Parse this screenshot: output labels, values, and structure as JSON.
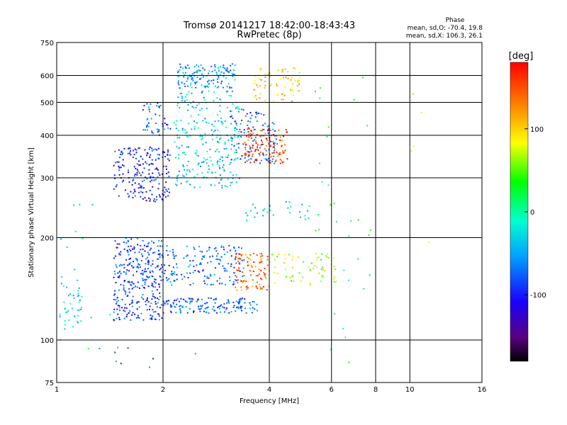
{
  "header": {
    "title_line1": "Tromsø 20141217 18:42:00-18:43:43",
    "title_line2": "RwPretec (8p)",
    "phase_title": "Phase",
    "phase_o": "mean, sd,O: -70.4, 19.8",
    "phase_x": "mean, sd,X: 106.3, 26.1"
  },
  "chart_data": {
    "type": "scatter",
    "xlabel": "Frequency [MHz]",
    "ylabel": "Stationary phase Virtual Height [km]",
    "x_scale": "log",
    "y_scale": "log",
    "xlim": [
      1,
      16
    ],
    "ylim": [
      75,
      750
    ],
    "x_ticks": [
      1,
      2,
      4,
      6,
      8,
      10,
      16
    ],
    "x_tick_labels": [
      "1",
      "2",
      "4",
      "6",
      "8",
      "10",
      "16"
    ],
    "y_ticks": [
      75,
      100,
      200,
      300,
      400,
      500,
      600,
      750
    ],
    "y_tick_labels": [
      "75",
      "100",
      "200",
      "300",
      "400",
      "500",
      "600",
      "750"
    ],
    "grid": true,
    "colorbar": {
      "label": "[deg]",
      "range": [
        -180,
        180
      ],
      "ticks": [
        -100,
        0,
        100
      ],
      "tick_labels": [
        "-100",
        "0",
        "100"
      ]
    },
    "clusters": [
      {
        "f": [
          1.02,
          1.18
        ],
        "h": [
          106,
          150
        ],
        "phase": -25,
        "n": 40
      },
      {
        "f": [
          1.45,
          2.0
        ],
        "h": [
          114,
          200
        ],
        "phase": -85,
        "n": 320
      },
      {
        "f": [
          2.0,
          3.7
        ],
        "h": [
          120,
          133
        ],
        "phase": -75,
        "n": 150
      },
      {
        "f": [
          2.0,
          3.4
        ],
        "h": [
          145,
          190
        ],
        "phase": -70,
        "n": 160
      },
      {
        "f": [
          3.2,
          4.0
        ],
        "h": [
          140,
          180
        ],
        "phase": 140,
        "n": 90
      },
      {
        "f": [
          4.0,
          6.2
        ],
        "h": [
          145,
          180
        ],
        "phase": 70,
        "n": 60
      },
      {
        "f": [
          1.45,
          2.1
        ],
        "h": [
          255,
          370
        ],
        "phase": -95,
        "n": 200
      },
      {
        "f": [
          1.75,
          2.1
        ],
        "h": [
          400,
          500
        ],
        "phase": -75,
        "n": 45
      },
      {
        "f": [
          2.15,
          3.3
        ],
        "h": [
          280,
          540
        ],
        "phase": -35,
        "n": 260
      },
      {
        "f": [
          2.2,
          3.2
        ],
        "h": [
          550,
          650
        ],
        "phase": -55,
        "n": 140
      },
      {
        "f": [
          3.1,
          4.2
        ],
        "h": [
          330,
          480
        ],
        "phase": -80,
        "n": 110
      },
      {
        "f": [
          3.4,
          4.5
        ],
        "h": [
          330,
          420
        ],
        "phase": 150,
        "n": 120
      },
      {
        "f": [
          3.6,
          4.9
        ],
        "h": [
          500,
          640
        ],
        "phase": 100,
        "n": 70
      },
      {
        "f": [
          3.4,
          5.2
        ],
        "h": [
          225,
          255
        ],
        "phase": -30,
        "n": 30
      },
      {
        "f": [
          5.4,
          7.8
        ],
        "h": [
          85,
          620
        ],
        "phase": 10,
        "n": 35
      },
      {
        "f": [
          1.0,
          1.5
        ],
        "h": [
          90,
          260
        ],
        "phase": -20,
        "n": 15
      },
      {
        "f": [
          1.3,
          2.5
        ],
        "h": [
          82,
          95
        ],
        "phase": -60,
        "n": 8
      },
      {
        "f": [
          10.0,
          12.5
        ],
        "h": [
          170,
          560
        ],
        "phase": 110,
        "n": 5
      }
    ]
  }
}
